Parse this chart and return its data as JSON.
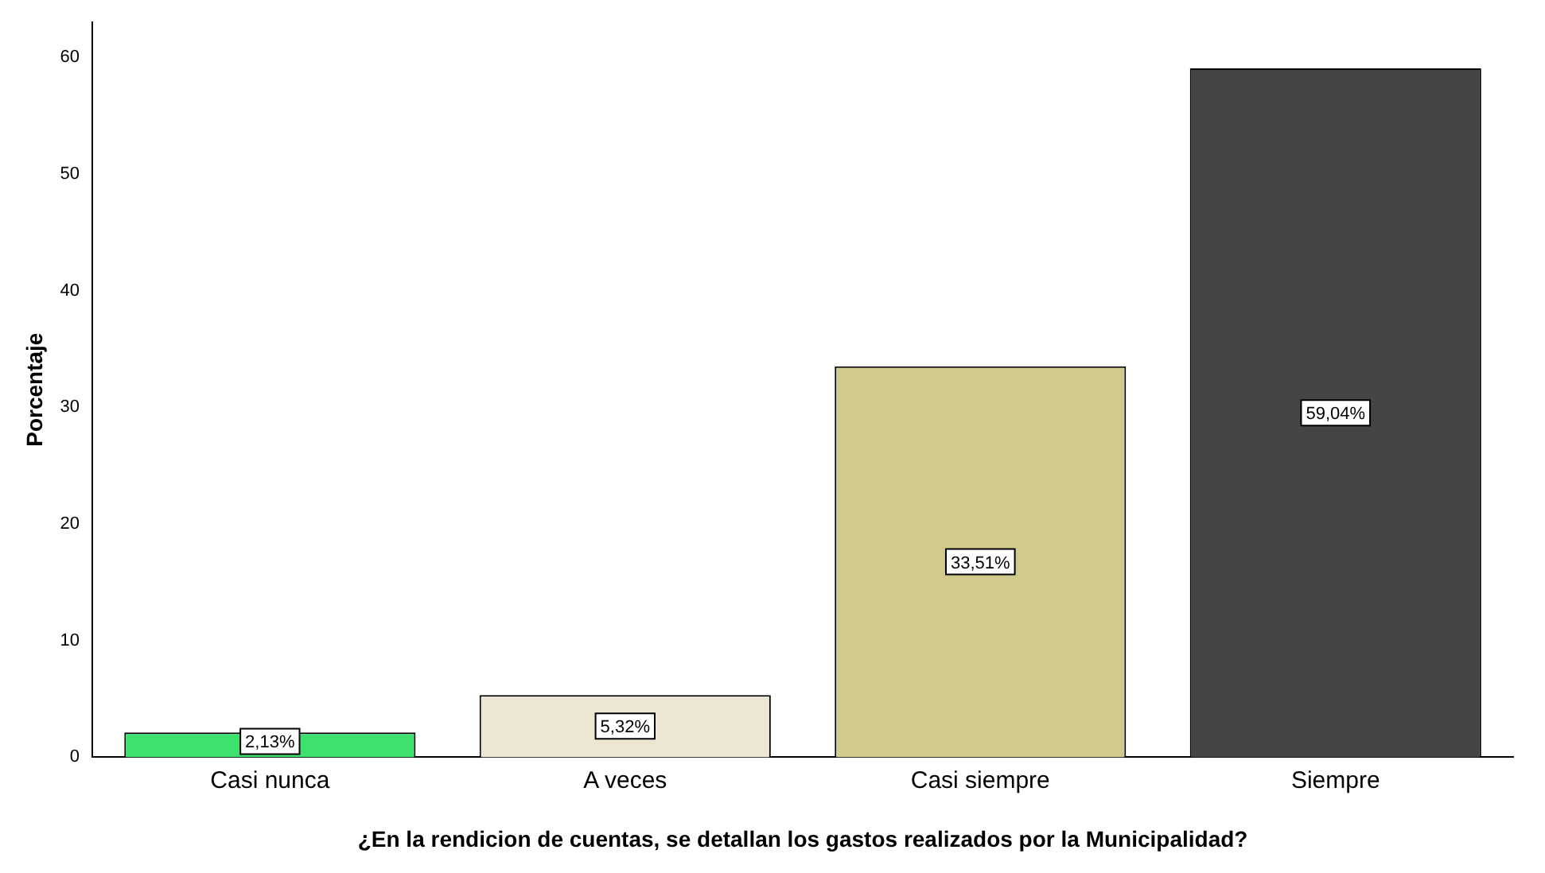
{
  "chart_data": {
    "type": "bar",
    "xlabel": "¿En la rendicion de cuentas, se detallan los gastos realizados por la Municipalidad?",
    "ylabel": "Porcentaje",
    "categories": [
      "Casi nunca",
      "A veces",
      "Casi siempre",
      "Siempre"
    ],
    "values": [
      2.13,
      5.32,
      33.51,
      59.04
    ],
    "colors": [
      "#3ee06e",
      "#ebe5d1",
      "#d1ca8f",
      "#444547"
    ],
    "value_labels": [
      "2,13%",
      "5,32%",
      "33,51%",
      "59,04%"
    ],
    "ylim": [
      0,
      63
    ],
    "yticks": [
      0,
      10,
      20,
      30,
      40,
      50,
      60
    ],
    "grid": false,
    "legend": false
  }
}
